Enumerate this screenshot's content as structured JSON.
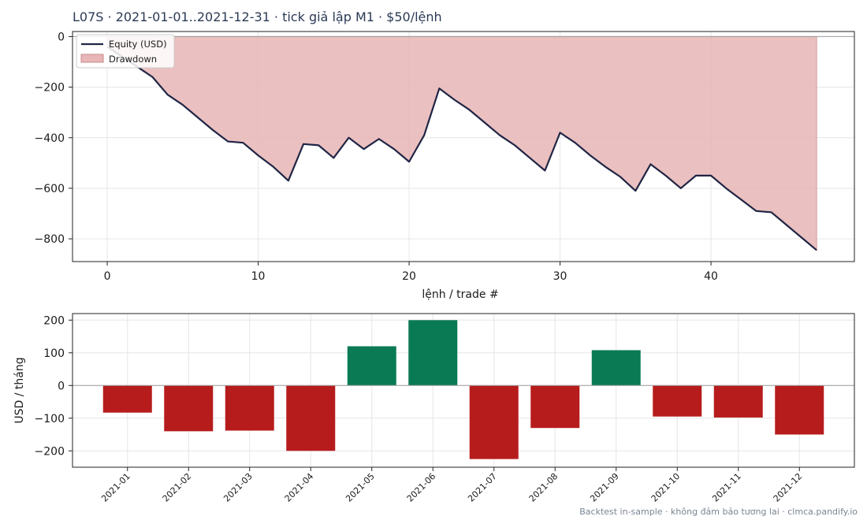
{
  "title": "L07S · 2021-01-01..2021-12-31 · tick giả lập M1 · $50/lệnh",
  "footer": "Backtest in-sample · không đảm bảo tương lai · clmca.pandify.io",
  "colors": {
    "equity": "#1f2544",
    "drawdown_fill": "#e8b6b6",
    "drawdown_edge": "#c98a8a",
    "positive": "#0a7a55",
    "negative": "#b71c1c",
    "grid": "#e6e6e6",
    "zero_line": "#9e9e9e"
  },
  "chart_data": [
    {
      "type": "line",
      "xlabel": "lệnh / trade #",
      "ylabel": "",
      "xlim": [
        -2.3,
        49.5
      ],
      "ylim": [
        -890,
        20
      ],
      "x_ticks": [
        0,
        10,
        20,
        30,
        40
      ],
      "y_ticks": [
        0,
        -200,
        -400,
        -600,
        -800
      ],
      "grid": true,
      "legend_position": "top-left",
      "series": [
        {
          "name": "Equity (USD)",
          "x": [
            0,
            1,
            2,
            3,
            4,
            5,
            6,
            7,
            8,
            9,
            10,
            11,
            12,
            13,
            14,
            15,
            16,
            17,
            18,
            19,
            20,
            21,
            22,
            23,
            24,
            25,
            26,
            27,
            28,
            29,
            30,
            31,
            32,
            33,
            34,
            35,
            36,
            37,
            38,
            39,
            40,
            41,
            42,
            43,
            44,
            45,
            46,
            47
          ],
          "y": [
            -40,
            -80,
            -120,
            -160,
            -230,
            -270,
            -320,
            -370,
            -415,
            -420,
            -470,
            -515,
            -570,
            -425,
            -430,
            -480,
            -400,
            -445,
            -405,
            -445,
            -495,
            -390,
            -205,
            -250,
            -290,
            -340,
            -390,
            -430,
            -480,
            -530,
            -380,
            -420,
            -470,
            -515,
            -555,
            -610,
            -505,
            -550,
            -600,
            -550,
            -550,
            -600,
            -645,
            -690,
            -695,
            -745,
            -795,
            -845
          ]
        },
        {
          "name": "Drawdown",
          "type": "area",
          "baseline": 0
        }
      ]
    },
    {
      "type": "bar",
      "ylabel": "USD / tháng",
      "ylim": [
        -250,
        220
      ],
      "y_ticks": [
        200,
        100,
        0,
        -100,
        -200
      ],
      "grid": true,
      "categories": [
        "2021-01",
        "2021-02",
        "2021-03",
        "2021-04",
        "2021-05",
        "2021-06",
        "2021-07",
        "2021-08",
        "2021-09",
        "2021-10",
        "2021-11",
        "2021-12"
      ],
      "values": [
        -83,
        -140,
        -138,
        -200,
        120,
        200,
        -225,
        -130,
        108,
        -95,
        -98,
        -150
      ]
    }
  ]
}
